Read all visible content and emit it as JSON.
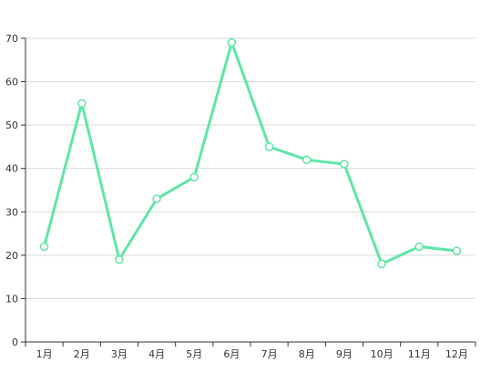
{
  "chart_data": {
    "type": "line",
    "categories": [
      "1月",
      "2月",
      "3月",
      "4月",
      "5月",
      "6月",
      "7月",
      "8月",
      "9月",
      "10月",
      "11月",
      "12月"
    ],
    "series": [
      {
        "values": [
          22,
          55,
          19,
          33,
          38,
          69,
          45,
          42,
          41,
          18,
          22,
          21
        ]
      }
    ],
    "ylim": [
      0,
      70
    ],
    "yticks": [
      0,
      10,
      20,
      30,
      40,
      50,
      60,
      70
    ],
    "grid": true,
    "legend": false,
    "line_color": "#5ee6a6",
    "marker_fill": "#ffffff",
    "grid_color": "#d9d9d9",
    "axis_color": "#333333"
  }
}
